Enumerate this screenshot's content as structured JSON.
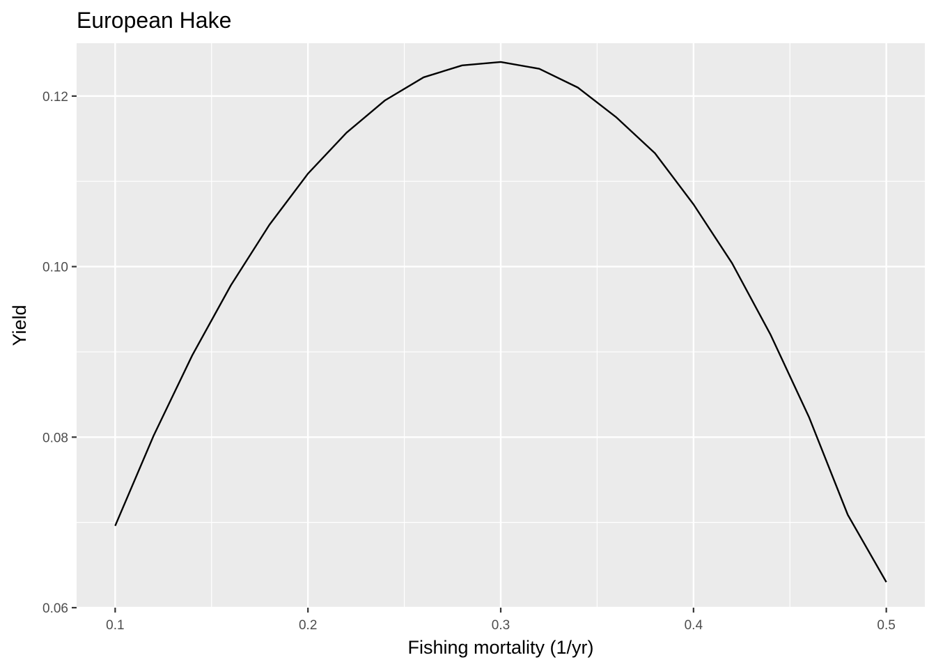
{
  "chart_data": {
    "type": "line",
    "title": "European Hake",
    "xlabel": "Fishing mortality (1/yr)",
    "ylabel": "Yield",
    "xlim": [
      0.08,
      0.52
    ],
    "ylim": [
      0.06,
      0.1262
    ],
    "x_ticks": [
      0.1,
      0.2,
      0.3,
      0.4,
      0.5
    ],
    "x_tick_labels": [
      "0.1",
      "0.2",
      "0.3",
      "0.4",
      "0.5"
    ],
    "y_ticks": [
      0.06,
      0.08,
      0.1,
      0.12
    ],
    "y_tick_labels": [
      "0.06",
      "0.08",
      "0.10",
      "0.12"
    ],
    "grid": true,
    "legend": "none",
    "colors": {
      "panel": "#ebebeb",
      "grid": "#ffffff",
      "line": "#000000",
      "tick_text": "#4d4d4d"
    },
    "series": [
      {
        "x": [
          0.1,
          0.12,
          0.14,
          0.16,
          0.18,
          0.2,
          0.22,
          0.24,
          0.26,
          0.28,
          0.3,
          0.32,
          0.34,
          0.36,
          0.38,
          0.4,
          0.42,
          0.44,
          0.46,
          0.48,
          0.5
        ],
        "values": [
          0.0696,
          0.0802,
          0.0896,
          0.0978,
          0.1049,
          0.1109,
          0.1157,
          0.1195,
          0.1222,
          0.1236,
          0.124,
          0.1232,
          0.121,
          0.1175,
          0.1133,
          0.1073,
          0.1004,
          0.092,
          0.0823,
          0.0709,
          0.063
        ]
      }
    ]
  }
}
